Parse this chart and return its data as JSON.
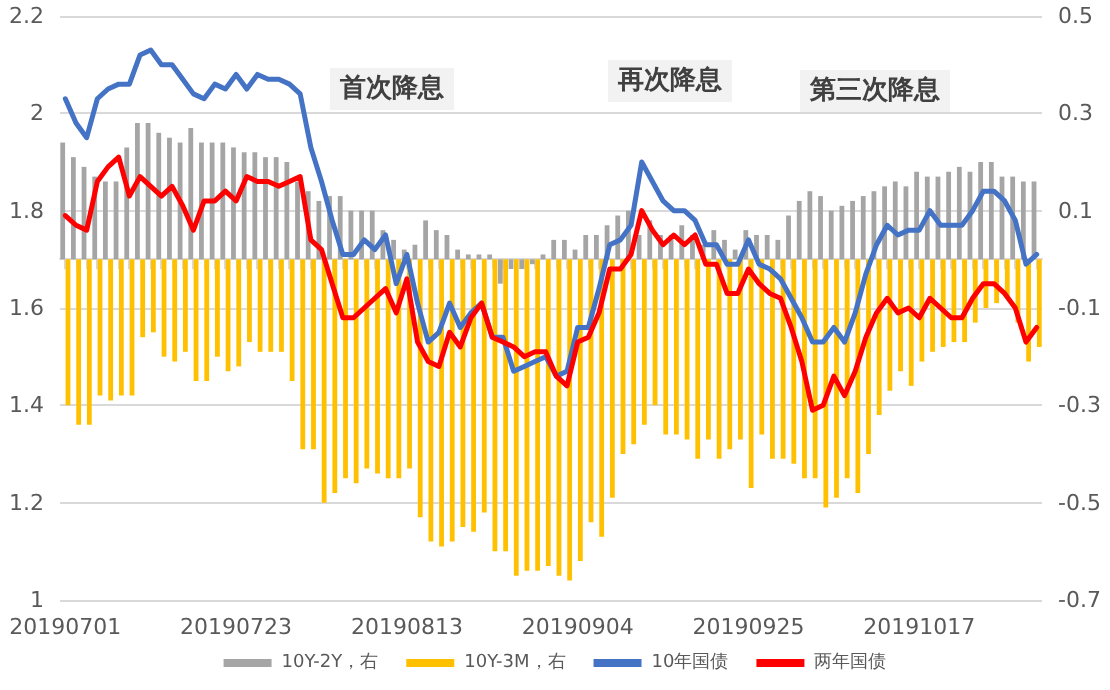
{
  "chart_data": {
    "type": "bar",
    "categories": [
      "20190701",
      null,
      null,
      null,
      null,
      null,
      null,
      null,
      null,
      null,
      null,
      null,
      null,
      null,
      null,
      null,
      "20190723",
      null,
      null,
      null,
      null,
      null,
      null,
      null,
      null,
      null,
      null,
      null,
      null,
      null,
      null,
      null,
      "20190813",
      null,
      null,
      null,
      null,
      null,
      null,
      null,
      null,
      null,
      null,
      null,
      null,
      null,
      null,
      null,
      "20190904",
      null,
      null,
      null,
      null,
      null,
      null,
      null,
      null,
      null,
      null,
      null,
      null,
      null,
      null,
      null,
      "20190925",
      null,
      null,
      null,
      null,
      null,
      null,
      null,
      null,
      null,
      null,
      null,
      null,
      null,
      null,
      null,
      "20191017",
      null,
      null,
      null,
      null,
      null,
      null,
      null,
      null,
      null,
      null,
      null
    ],
    "series": [
      {
        "name": "10Y-2Y，右",
        "axis": "y2",
        "color": "#a5a5a5",
        "values": [
          0.24,
          0.21,
          0.19,
          0.17,
          0.16,
          0.16,
          0.23,
          0.28,
          0.28,
          0.26,
          0.25,
          0.24,
          0.27,
          0.24,
          0.24,
          0.24,
          0.23,
          0.22,
          0.22,
          0.21,
          0.21,
          0.2,
          0.16,
          0.14,
          0.12,
          0.13,
          0.13,
          0.1,
          0.1,
          0.1,
          0.06,
          0.04,
          0.02,
          0.03,
          0.08,
          0.06,
          0.05,
          0.02,
          0.01,
          0.01,
          0.01,
          -0.05,
          -0.02,
          -0.02,
          -0.01,
          0.01,
          0.04,
          0.04,
          0.02,
          0.05,
          0.05,
          0.07,
          0.09,
          0.1,
          0.05,
          0.08,
          0.05,
          0.05,
          0.07,
          0.05,
          0.03,
          0.06,
          0.04,
          0.02,
          0.06,
          0.05,
          0.05,
          0.04,
          0.09,
          0.12,
          0.14,
          0.13,
          0.1,
          0.11,
          0.12,
          0.13,
          0.14,
          0.15,
          0.16,
          0.15,
          0.18,
          0.17,
          0.17,
          0.18,
          0.19,
          0.18,
          0.2,
          0.2,
          0.17,
          0.17,
          0.16,
          0.16
        ]
      },
      {
        "name": "10Y-3M，右",
        "axis": "y2",
        "color": "#ffc000",
        "values": [
          -0.3,
          -0.34,
          -0.34,
          -0.28,
          -0.29,
          -0.28,
          -0.28,
          -0.16,
          -0.15,
          -0.2,
          -0.21,
          -0.19,
          -0.25,
          -0.25,
          -0.2,
          -0.23,
          -0.22,
          -0.17,
          -0.19,
          -0.19,
          -0.19,
          -0.25,
          -0.39,
          -0.39,
          -0.5,
          -0.48,
          -0.45,
          -0.46,
          -0.43,
          -0.44,
          -0.45,
          -0.45,
          -0.43,
          -0.53,
          -0.58,
          -0.59,
          -0.58,
          -0.55,
          -0.56,
          -0.52,
          -0.6,
          -0.6,
          -0.65,
          -0.64,
          -0.64,
          -0.63,
          -0.65,
          -0.66,
          -0.62,
          -0.54,
          -0.57,
          -0.49,
          -0.4,
          -0.38,
          -0.34,
          -0.3,
          -0.36,
          -0.36,
          -0.37,
          -0.41,
          -0.37,
          -0.41,
          -0.39,
          -0.37,
          -0.47,
          -0.36,
          -0.41,
          -0.41,
          -0.42,
          -0.45,
          -0.45,
          -0.51,
          -0.49,
          -0.45,
          -0.48,
          -0.4,
          -0.32,
          -0.27,
          -0.23,
          -0.26,
          -0.21,
          -0.19,
          -0.18,
          -0.17,
          -0.17,
          -0.13,
          -0.1,
          -0.09,
          -0.08,
          -0.13,
          -0.21,
          -0.18
        ]
      },
      {
        "name": "10年国债",
        "type": "line",
        "color": "#4472c4",
        "values": [
          2.03,
          1.98,
          1.95,
          2.03,
          2.05,
          2.06,
          2.06,
          2.12,
          2.13,
          2.1,
          2.1,
          2.07,
          2.04,
          2.03,
          2.06,
          2.05,
          2.08,
          2.05,
          2.08,
          2.07,
          2.07,
          2.06,
          2.04,
          1.93,
          1.86,
          1.78,
          1.71,
          1.71,
          1.74,
          1.72,
          1.75,
          1.65,
          1.71,
          1.61,
          1.53,
          1.55,
          1.61,
          1.56,
          1.59,
          1.61,
          1.54,
          1.54,
          1.47,
          1.48,
          1.49,
          1.5,
          1.46,
          1.47,
          1.56,
          1.56,
          1.64,
          1.73,
          1.74,
          1.77,
          1.9,
          1.86,
          1.82,
          1.8,
          1.8,
          1.78,
          1.73,
          1.73,
          1.69,
          1.69,
          1.74,
          1.69,
          1.68,
          1.66,
          1.62,
          1.58,
          1.53,
          1.53,
          1.56,
          1.53,
          1.59,
          1.67,
          1.73,
          1.77,
          1.75,
          1.76,
          1.76,
          1.8,
          1.77,
          1.77,
          1.77,
          1.8,
          1.84,
          1.84,
          1.82,
          1.78,
          1.69,
          1.71
        ]
      },
      {
        "name": "两年国债",
        "type": "line",
        "color": "#ff0000",
        "values": [
          1.79,
          1.77,
          1.76,
          1.86,
          1.89,
          1.91,
          1.83,
          1.87,
          1.85,
          1.83,
          1.85,
          1.81,
          1.76,
          1.82,
          1.82,
          1.84,
          1.82,
          1.87,
          1.86,
          1.86,
          1.85,
          1.86,
          1.87,
          1.74,
          1.72,
          1.65,
          1.58,
          1.58,
          1.6,
          1.62,
          1.64,
          1.59,
          1.66,
          1.53,
          1.49,
          1.48,
          1.55,
          1.52,
          1.58,
          1.61,
          1.54,
          1.53,
          1.52,
          1.5,
          1.51,
          1.51,
          1.46,
          1.44,
          1.53,
          1.54,
          1.59,
          1.68,
          1.68,
          1.71,
          1.8,
          1.76,
          1.73,
          1.75,
          1.73,
          1.75,
          1.69,
          1.69,
          1.63,
          1.63,
          1.68,
          1.65,
          1.63,
          1.62,
          1.56,
          1.49,
          1.39,
          1.4,
          1.46,
          1.42,
          1.47,
          1.54,
          1.59,
          1.62,
          1.59,
          1.6,
          1.58,
          1.62,
          1.6,
          1.58,
          1.58,
          1.62,
          1.65,
          1.65,
          1.63,
          1.6,
          1.53,
          1.56
        ]
      }
    ],
    "ylim": [
      1,
      2.2
    ],
    "yticks": [
      1,
      1.2,
      1.4,
      1.6,
      1.8,
      2,
      2.2
    ],
    "y2lim": [
      -0.7,
      0.5
    ],
    "y2ticks": [
      -0.7,
      -0.5,
      -0.3,
      -0.1,
      0.1,
      0.3,
      0.5
    ],
    "annotations": [
      "首次降息",
      "再次降息",
      "第三次降息"
    ],
    "grid": "y",
    "legend": "bottom",
    "marker": "none",
    "line_style": "solid"
  }
}
